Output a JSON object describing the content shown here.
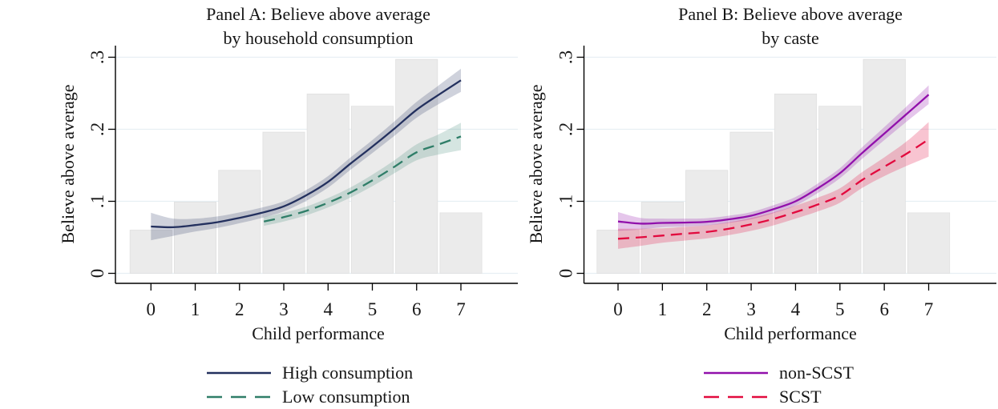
{
  "figure": {
    "background": "#ffffff",
    "grid_color": "#e7eff3",
    "bar_fill": "#ebebeb",
    "bar_stroke": "#e0e0e0",
    "axis_color": "#000000",
    "text_color": "#161616"
  },
  "chart_data": [
    {
      "id": "panel-a",
      "type": "line",
      "title_line1": "Panel A: Believe above average",
      "title_line2": "by household consumption",
      "xlabel": "Child performance",
      "ylabel": "Believe above average",
      "xlim": [
        -0.55,
        7.55
      ],
      "ylim": [
        0,
        0.3
      ],
      "grid": true,
      "legend_position": "below",
      "xticks": [
        "0",
        "1",
        "2",
        "3",
        "4",
        "5",
        "6",
        "7"
      ],
      "yticks": [
        {
          "value": 0,
          "label": "0"
        },
        {
          "value": 0.1,
          "label": ".1"
        },
        {
          "value": 0.2,
          "label": ".2"
        },
        {
          "value": 0.3,
          "label": ".3"
        }
      ],
      "histogram": {
        "categories": [
          0,
          1,
          2,
          3,
          4,
          5,
          6,
          7
        ],
        "values": [
          0.06,
          0.099,
          0.143,
          0.196,
          0.249,
          0.232,
          0.297,
          0.084
        ]
      },
      "series": [
        {
          "name": "High consumption",
          "style": "solid",
          "color": "#23305e",
          "band_color": "rgba(35,48,94,0.22)",
          "x": [
            0,
            0.5,
            1,
            1.5,
            2,
            2.5,
            3,
            3.5,
            4,
            4.5,
            5,
            5.5,
            6,
            6.5,
            7
          ],
          "y": [
            0.065,
            0.064,
            0.067,
            0.071,
            0.077,
            0.084,
            0.093,
            0.108,
            0.127,
            0.152,
            0.176,
            0.201,
            0.227,
            0.248,
            0.268
          ],
          "ci_halfwidth": [
            0.019,
            0.012,
            0.009,
            0.008,
            0.0075,
            0.0072,
            0.007,
            0.0075,
            0.008,
            0.0085,
            0.009,
            0.01,
            0.011,
            0.013,
            0.016
          ]
        },
        {
          "name": "Low consumption",
          "style": "dashed",
          "color": "#2f7e68",
          "band_color": "rgba(47,126,104,0.20)",
          "x": [
            2.55,
            3,
            3.5,
            4,
            4.5,
            5,
            5.5,
            6,
            6.5,
            7
          ],
          "y": [
            0.072,
            0.078,
            0.0865,
            0.098,
            0.112,
            0.129,
            0.148,
            0.168,
            0.179,
            0.19
          ],
          "ci_halfwidth": [
            0.006,
            0.006,
            0.006,
            0.0065,
            0.007,
            0.008,
            0.009,
            0.011,
            0.014,
            0.019
          ]
        }
      ]
    },
    {
      "id": "panel-b",
      "type": "line",
      "title_line1": "Panel B: Believe above average",
      "title_line2": "by caste",
      "xlabel": "Child performance",
      "ylabel": "Believe above average",
      "xlim": [
        -0.55,
        7.55
      ],
      "ylim": [
        0,
        0.3
      ],
      "grid": true,
      "legend_position": "below",
      "xticks": [
        "0",
        "1",
        "2",
        "3",
        "4",
        "5",
        "6",
        "7"
      ],
      "yticks": [
        {
          "value": 0,
          "label": "0"
        },
        {
          "value": 0.1,
          "label": ".1"
        },
        {
          "value": 0.2,
          "label": ".2"
        },
        {
          "value": 0.3,
          "label": ".3"
        }
      ],
      "histogram": {
        "categories": [
          0,
          1,
          2,
          3,
          4,
          5,
          6,
          7
        ],
        "values": [
          0.06,
          0.099,
          0.143,
          0.196,
          0.249,
          0.232,
          0.297,
          0.084
        ]
      },
      "series": [
        {
          "name": "non-SCST",
          "style": "solid",
          "color": "#9110ab",
          "band_color": "rgba(145,16,171,0.24)",
          "x": [
            0,
            0.5,
            1,
            1.5,
            2,
            2.5,
            3,
            3.5,
            4,
            4.5,
            5,
            5.5,
            6,
            6.5,
            7
          ],
          "y": [
            0.072,
            0.069,
            0.07,
            0.0705,
            0.0715,
            0.075,
            0.08,
            0.089,
            0.1,
            0.118,
            0.139,
            0.167,
            0.194,
            0.221,
            0.248
          ],
          "ci_halfwidth": [
            0.013,
            0.008,
            0.006,
            0.0055,
            0.005,
            0.005,
            0.005,
            0.0055,
            0.006,
            0.0065,
            0.007,
            0.008,
            0.009,
            0.0105,
            0.013
          ]
        },
        {
          "name": "SCST",
          "style": "dashed",
          "color": "#e20a3e",
          "band_color": "rgba(226,10,62,0.24)",
          "x": [
            0,
            0.5,
            1,
            1.5,
            2,
            2.5,
            3,
            3.5,
            4,
            4.5,
            5,
            5.5,
            6,
            6.5,
            7
          ],
          "y": [
            0.048,
            0.05,
            0.0525,
            0.055,
            0.0575,
            0.062,
            0.068,
            0.0755,
            0.085,
            0.0955,
            0.108,
            0.1295,
            0.148,
            0.166,
            0.186
          ],
          "ci_halfwidth": [
            0.014,
            0.012,
            0.01,
            0.0095,
            0.009,
            0.009,
            0.009,
            0.009,
            0.009,
            0.0095,
            0.01,
            0.011,
            0.013,
            0.017,
            0.024
          ]
        }
      ]
    }
  ]
}
